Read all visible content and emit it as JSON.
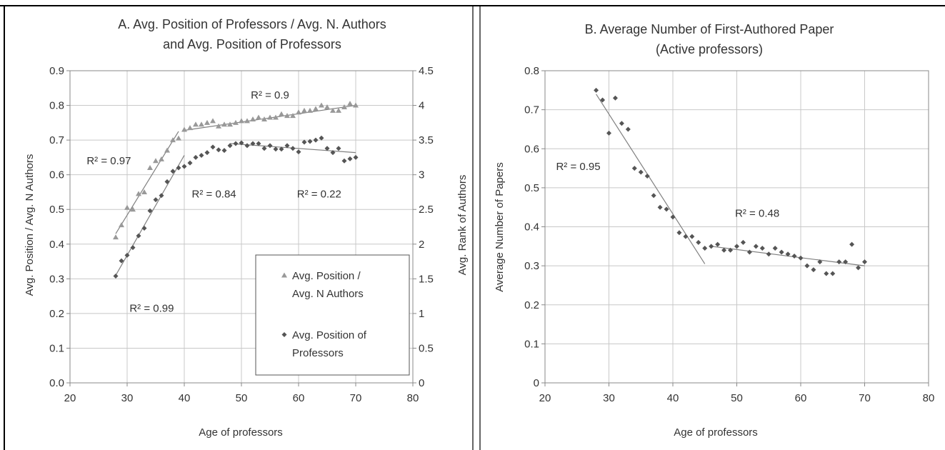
{
  "colors": {
    "triangle_series": "#999999",
    "diamond_series": "#555555",
    "fit_line": "#808080",
    "grid": "#c8c8c8",
    "frame": "#000000"
  },
  "chart_data": [
    {
      "panel": "A",
      "type": "scatter",
      "title_lines": [
        "A. Avg. Position of Professors / Avg. N. Authors",
        "and Avg. Position of Professors"
      ],
      "xlabel": "Age of professors",
      "ylabel": "Avg. Position / Avg. N Authors",
      "y2label": "Avg. Rank of Authors",
      "xlim": [
        20,
        80
      ],
      "ylim": [
        0,
        0.9
      ],
      "y2lim": [
        0,
        4.5
      ],
      "xticks": [
        "20",
        "30",
        "40",
        "50",
        "60",
        "70",
        "80"
      ],
      "yticks": [
        "0.0",
        "0.1",
        "0.2",
        "0.3",
        "0.4",
        "0.5",
        "0.6",
        "0.7",
        "0.8",
        "0.9"
      ],
      "y2ticks": [
        "0",
        "0.5",
        "1",
        "1.5",
        "2",
        "2.5",
        "3",
        "3.5",
        "4",
        "4.5"
      ],
      "grid": true,
      "legend_position": "bottom-right",
      "series": [
        {
          "name_lines": [
            "Avg. Position /",
            "Avg. N Authors"
          ],
          "marker": "triangle",
          "axis": "left",
          "x": [
            28,
            29,
            30,
            31,
            32,
            33,
            34,
            35,
            36,
            37,
            38,
            39,
            40,
            41,
            42,
            43,
            44,
            45,
            46,
            47,
            48,
            49,
            50,
            51,
            52,
            53,
            54,
            55,
            56,
            57,
            58,
            59,
            60,
            61,
            62,
            63,
            64,
            65,
            66,
            67,
            68,
            69,
            70
          ],
          "y": [
            0.42,
            0.455,
            0.505,
            0.5,
            0.545,
            0.55,
            0.62,
            0.64,
            0.645,
            0.67,
            0.7,
            0.705,
            0.73,
            0.735,
            0.745,
            0.745,
            0.75,
            0.755,
            0.74,
            0.745,
            0.745,
            0.75,
            0.755,
            0.755,
            0.76,
            0.765,
            0.76,
            0.765,
            0.765,
            0.775,
            0.77,
            0.77,
            0.78,
            0.785,
            0.785,
            0.79,
            0.8,
            0.795,
            0.785,
            0.785,
            0.795,
            0.805,
            0.8
          ]
        },
        {
          "name_lines": [
            "Avg. Position of",
            "Professors"
          ],
          "marker": "diamond",
          "axis": "right",
          "x": [
            28,
            29,
            30,
            31,
            32,
            33,
            34,
            35,
            36,
            37,
            38,
            39,
            40,
            41,
            42,
            43,
            44,
            45,
            46,
            47,
            48,
            49,
            50,
            51,
            52,
            53,
            54,
            55,
            56,
            57,
            58,
            59,
            60,
            61,
            62,
            63,
            64,
            65,
            66,
            67,
            68,
            69,
            70
          ],
          "y": [
            1.54,
            1.76,
            1.84,
            1.95,
            2.12,
            2.23,
            2.48,
            2.64,
            2.7,
            2.9,
            3.05,
            3.1,
            3.12,
            3.17,
            3.25,
            3.28,
            3.32,
            3.4,
            3.36,
            3.35,
            3.42,
            3.45,
            3.46,
            3.42,
            3.45,
            3.45,
            3.38,
            3.42,
            3.37,
            3.37,
            3.42,
            3.38,
            3.33,
            3.47,
            3.48,
            3.5,
            3.53,
            3.38,
            3.32,
            3.38,
            3.2,
            3.23,
            3.25
          ]
        }
      ],
      "fit_lines": [
        {
          "axis": "left",
          "from": [
            28,
            0.43
          ],
          "to": [
            39,
            0.725
          ]
        },
        {
          "axis": "left",
          "from": [
            40,
            0.728
          ],
          "to": [
            70,
            0.8
          ]
        },
        {
          "axis": "right",
          "from": [
            28,
            1.55
          ],
          "to": [
            40,
            3.28
          ]
        },
        {
          "axis": "right",
          "from": [
            48,
            3.45
          ],
          "to": [
            70,
            3.32
          ]
        }
      ],
      "annotations": [
        {
          "text": "R² = 0.9",
          "x": 55,
          "y": 0.83,
          "axis": "left"
        },
        {
          "text": "R² = 0.97",
          "x": 26.8,
          "y": 0.64,
          "axis": "left"
        },
        {
          "text": "R² = 0.84",
          "x": 45.2,
          "y": 0.545,
          "axis": "left"
        },
        {
          "text": "R² = 0.22",
          "x": 63.6,
          "y": 0.545,
          "axis": "left"
        },
        {
          "text": "R² = 0.99",
          "x": 34.3,
          "y": 0.215,
          "axis": "left"
        }
      ]
    },
    {
      "panel": "B",
      "type": "scatter",
      "title_lines": [
        "B. Average Number of First-Authored Paper",
        "(Active professors)"
      ],
      "xlabel": "Age of professors",
      "ylabel": "Average Number of Papers",
      "xlim": [
        20,
        80
      ],
      "ylim": [
        0,
        0.8
      ],
      "xticks": [
        "20",
        "30",
        "40",
        "50",
        "60",
        "70",
        "80"
      ],
      "yticks": [
        "0",
        "0.1",
        "0.2",
        "0.3",
        "0.4",
        "0.5",
        "0.6",
        "0.7",
        "0.8"
      ],
      "grid": true,
      "series": [
        {
          "marker": "diamond",
          "x": [
            28,
            29,
            30,
            31,
            32,
            33,
            34,
            35,
            36,
            37,
            38,
            39,
            40,
            41,
            42,
            43,
            44,
            45,
            46,
            47,
            48,
            49,
            50,
            51,
            52,
            53,
            54,
            55,
            56,
            57,
            58,
            59,
            60,
            61,
            62,
            63,
            64,
            65,
            66,
            67,
            68,
            69,
            70
          ],
          "y": [
            0.75,
            0.725,
            0.64,
            0.73,
            0.665,
            0.65,
            0.55,
            0.54,
            0.53,
            0.48,
            0.45,
            0.445,
            0.425,
            0.385,
            0.375,
            0.375,
            0.36,
            0.345,
            0.35,
            0.355,
            0.34,
            0.34,
            0.35,
            0.36,
            0.335,
            0.35,
            0.345,
            0.33,
            0.345,
            0.335,
            0.33,
            0.325,
            0.32,
            0.3,
            0.29,
            0.31,
            0.28,
            0.28,
            0.31,
            0.31,
            0.355,
            0.295,
            0.31
          ]
        }
      ],
      "fit_lines": [
        {
          "from": [
            28,
            0.74
          ],
          "to": [
            45,
            0.305
          ]
        },
        {
          "from": [
            46,
            0.35
          ],
          "to": [
            70,
            0.3
          ]
        }
      ],
      "annotations": [
        {
          "text": "R² = 0.95",
          "x": 25.2,
          "y": 0.555
        },
        {
          "text": "R² = 0.48",
          "x": 53.2,
          "y": 0.435
        }
      ]
    }
  ]
}
